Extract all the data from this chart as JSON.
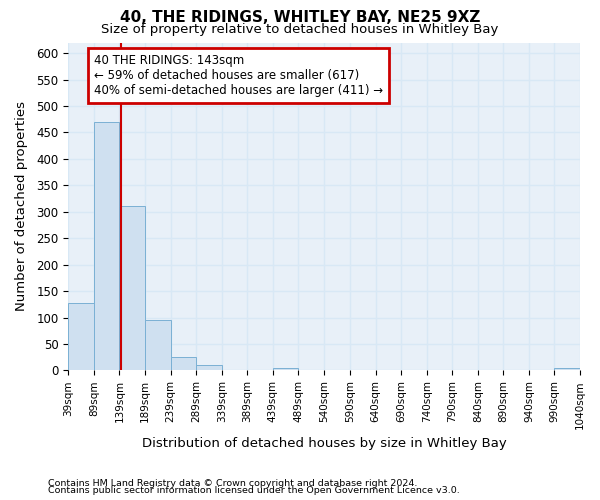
{
  "title1": "40, THE RIDINGS, WHITLEY BAY, NE25 9XZ",
  "title2": "Size of property relative to detached houses in Whitley Bay",
  "xlabel": "Distribution of detached houses by size in Whitley Bay",
  "ylabel": "Number of detached properties",
  "annotation_line1": "40 THE RIDINGS: 143sqm",
  "annotation_line2": "← 59% of detached houses are smaller (617)",
  "annotation_line3": "40% of semi-detached houses are larger (411) →",
  "property_size": 143,
  "bin_edges": [
    39,
    89,
    139,
    189,
    239,
    289,
    339,
    389,
    439,
    489,
    540,
    590,
    640,
    690,
    740,
    790,
    840,
    890,
    940,
    990,
    1040
  ],
  "bin_counts": [
    128,
    470,
    311,
    96,
    25,
    10,
    0,
    0,
    5,
    0,
    0,
    0,
    0,
    0,
    0,
    0,
    0,
    0,
    0,
    5
  ],
  "bar_color": "#cfe0f0",
  "bar_edge_color": "#7ab0d4",
  "vline_color": "#cc0000",
  "vline_x": 143,
  "annotation_box_color": "#cc0000",
  "footnote1": "Contains HM Land Registry data © Crown copyright and database right 2024.",
  "footnote2": "Contains public sector information licensed under the Open Government Licence v3.0.",
  "ylim": [
    0,
    620
  ],
  "yticks": [
    0,
    50,
    100,
    150,
    200,
    250,
    300,
    350,
    400,
    450,
    500,
    550,
    600
  ],
  "grid_color": "#d8e8f5",
  "background_color": "#e8f0f8"
}
